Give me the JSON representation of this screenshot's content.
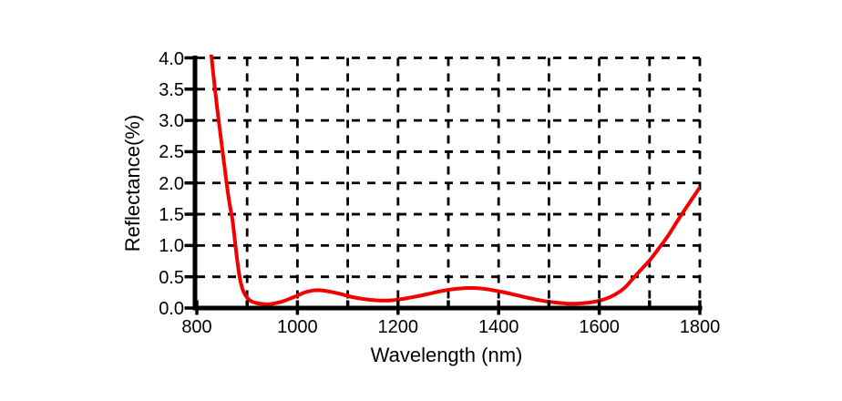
{
  "chart_data": {
    "type": "line",
    "title": "",
    "xlabel": "Wavelength (nm)",
    "ylabel": "Reflectance(%)",
    "xlim": [
      800,
      1800
    ],
    "ylim": [
      0,
      4.0
    ],
    "x_tick_labels": [
      {
        "value": 800,
        "label": "800"
      },
      {
        "value": 1000,
        "label": "1000"
      },
      {
        "value": 1200,
        "label": "1200"
      },
      {
        "value": 1400,
        "label": "1400"
      },
      {
        "value": 1600,
        "label": "1600"
      },
      {
        "value": 1800,
        "label": "1800"
      }
    ],
    "x_minor_tick_step": 100,
    "y_tick_labels": [
      {
        "value": 0.0,
        "label": "0.0"
      },
      {
        "value": 0.5,
        "label": "0.5"
      },
      {
        "value": 1.0,
        "label": "1.0"
      },
      {
        "value": 1.5,
        "label": "1.5"
      },
      {
        "value": 2.0,
        "label": "2.0"
      },
      {
        "value": 2.5,
        "label": "2.5"
      },
      {
        "value": 3.0,
        "label": "3.0"
      },
      {
        "value": 3.5,
        "label": "3.5"
      },
      {
        "value": 4.0,
        "label": "4.0"
      }
    ],
    "grid": {
      "visible": true,
      "style": "dashed",
      "color": "#000000"
    },
    "axis_color": "#000000",
    "background": "#ffffff",
    "legend": {
      "visible": false
    },
    "series": [
      {
        "name": "reflectance",
        "color": "#f40000",
        "points": [
          [
            826,
            4.35
          ],
          [
            830,
            3.95
          ],
          [
            835,
            3.58
          ],
          [
            840,
            3.22
          ],
          [
            845,
            2.9
          ],
          [
            850,
            2.58
          ],
          [
            855,
            2.26
          ],
          [
            860,
            1.95
          ],
          [
            865,
            1.67
          ],
          [
            871,
            1.4
          ],
          [
            876,
            1.05
          ],
          [
            880,
            0.78
          ],
          [
            884,
            0.55
          ],
          [
            888,
            0.38
          ],
          [
            893,
            0.26
          ],
          [
            900,
            0.165
          ],
          [
            908,
            0.11
          ],
          [
            918,
            0.08
          ],
          [
            930,
            0.065
          ],
          [
            942,
            0.06
          ],
          [
            955,
            0.075
          ],
          [
            970,
            0.105
          ],
          [
            985,
            0.15
          ],
          [
            1000,
            0.2
          ],
          [
            1015,
            0.25
          ],
          [
            1030,
            0.28
          ],
          [
            1042,
            0.285
          ],
          [
            1055,
            0.275
          ],
          [
            1072,
            0.25
          ],
          [
            1090,
            0.215
          ],
          [
            1110,
            0.175
          ],
          [
            1130,
            0.145
          ],
          [
            1150,
            0.128
          ],
          [
            1168,
            0.12
          ],
          [
            1185,
            0.122
          ],
          [
            1200,
            0.135
          ],
          [
            1220,
            0.16
          ],
          [
            1243,
            0.195
          ],
          [
            1265,
            0.235
          ],
          [
            1288,
            0.275
          ],
          [
            1312,
            0.305
          ],
          [
            1338,
            0.32
          ],
          [
            1362,
            0.315
          ],
          [
            1385,
            0.29
          ],
          [
            1410,
            0.253
          ],
          [
            1435,
            0.207
          ],
          [
            1460,
            0.16
          ],
          [
            1485,
            0.12
          ],
          [
            1510,
            0.09
          ],
          [
            1535,
            0.072
          ],
          [
            1552,
            0.07
          ],
          [
            1570,
            0.078
          ],
          [
            1590,
            0.1
          ],
          [
            1610,
            0.14
          ],
          [
            1630,
            0.21
          ],
          [
            1650,
            0.32
          ],
          [
            1668,
            0.48
          ],
          [
            1685,
            0.63
          ],
          [
            1702,
            0.78
          ],
          [
            1720,
            0.97
          ],
          [
            1738,
            1.17
          ],
          [
            1756,
            1.4
          ],
          [
            1775,
            1.63
          ],
          [
            1800,
            1.93
          ]
        ]
      }
    ]
  }
}
